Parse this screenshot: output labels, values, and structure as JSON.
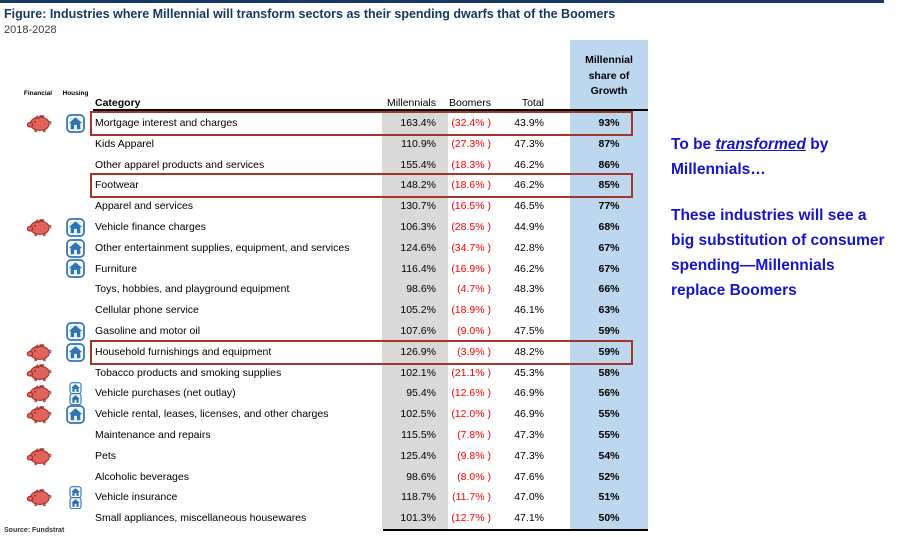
{
  "figure": {
    "title": "Figure: Industries where Millennial will transform sectors as their spending dwarfs that of the Boomers",
    "subtitle": "2018-2028",
    "source": "Source: Fundstrat"
  },
  "annotation": {
    "line1_prefix": "To be ",
    "line1_emphasis": "transformed",
    "line1_suffix": " by Millennials…",
    "line2": "These industries will see a big substitution of consumer spending—Millennials replace Boomers"
  },
  "icons": {
    "financial": "piggy-bank-icon",
    "housing": "house-icon"
  },
  "colors": {
    "title_navy": "#17375E",
    "annotation_blue": "#1414CC",
    "boomers_negative_red": "#FF0000",
    "highlight_border_red": "#A2362B",
    "millennials_column_bg": "#D9D9D9",
    "share_column_bg": "#BDD7EE",
    "pig_pink": "#E2625C",
    "house_blue": "#2E75B6"
  },
  "chart_data": {
    "type": "table",
    "title": "Industries where Millennial will transform sectors as their spending dwarfs that of the Boomers",
    "period": "2018-2028",
    "columns": [
      "Financial",
      "Housing",
      "Category",
      "Millennials",
      "Boomers",
      "Total",
      "Millennial share of Growth"
    ],
    "rows": [
      {
        "category": "Mortgage interest and charges",
        "millennials": "163.4%",
        "boomers": "(32.4% )",
        "total": "43.9%",
        "share": "93%",
        "financial": true,
        "housing": 1,
        "highlighted": true
      },
      {
        "category": "Kids Apparel",
        "millennials": "110.9%",
        "boomers": "(27.3% )",
        "total": "47.3%",
        "share": "87%",
        "financial": false,
        "housing": 0,
        "highlighted": false
      },
      {
        "category": "Other apparel products and services",
        "millennials": "155.4%",
        "boomers": "(18.3% )",
        "total": "46.2%",
        "share": "86%",
        "financial": false,
        "housing": 0,
        "highlighted": false
      },
      {
        "category": "Footwear",
        "millennials": "148.2%",
        "boomers": "(18.6% )",
        "total": "46.2%",
        "share": "85%",
        "financial": false,
        "housing": 0,
        "highlighted": true
      },
      {
        "category": "Apparel and services",
        "millennials": "130.7%",
        "boomers": "(16.5% )",
        "total": "46.5%",
        "share": "77%",
        "financial": false,
        "housing": 0,
        "highlighted": false
      },
      {
        "category": "Vehicle finance charges",
        "millennials": "106.3%",
        "boomers": "(28.5% )",
        "total": "44.9%",
        "share": "68%",
        "financial": true,
        "housing": 1,
        "highlighted": false
      },
      {
        "category": "Other entertainment supplies, equipment, and services",
        "millennials": "124.6%",
        "boomers": "(34.7% )",
        "total": "42.8%",
        "share": "67%",
        "financial": false,
        "housing": 1,
        "highlighted": false
      },
      {
        "category": "Furniture",
        "millennials": "116.4%",
        "boomers": "(16.9% )",
        "total": "46.2%",
        "share": "67%",
        "financial": false,
        "housing": 1,
        "highlighted": false
      },
      {
        "category": "Toys, hobbies, and playground equipment",
        "millennials": "98.6%",
        "boomers": "(4.7% )",
        "total": "48.3%",
        "share": "66%",
        "financial": false,
        "housing": 0,
        "highlighted": false
      },
      {
        "category": "Cellular phone service",
        "millennials": "105.2%",
        "boomers": "(18.9% )",
        "total": "46.1%",
        "share": "63%",
        "financial": false,
        "housing": 0,
        "highlighted": false
      },
      {
        "category": "Gasoline and motor oil",
        "millennials": "107.6%",
        "boomers": "(9.0% )",
        "total": "47.5%",
        "share": "59%",
        "financial": false,
        "housing": 1,
        "highlighted": false
      },
      {
        "category": "Household furnishings and equipment",
        "millennials": "126.9%",
        "boomers": "(3.9% )",
        "total": "48.2%",
        "share": "59%",
        "financial": true,
        "housing": 1,
        "highlighted": true
      },
      {
        "category": "Tobacco products and smoking supplies",
        "millennials": "102.1%",
        "boomers": "(21.1% )",
        "total": "45.3%",
        "share": "58%",
        "financial": true,
        "housing": 0,
        "highlighted": false
      },
      {
        "category": "Vehicle purchases (net outlay)",
        "millennials": "95.4%",
        "boomers": "(12.6% )",
        "total": "46.9%",
        "share": "56%",
        "financial": true,
        "housing": 2,
        "highlighted": false
      },
      {
        "category": "Vehicle rental, leases, licenses, and other charges",
        "millennials": "102.5%",
        "boomers": "(12.0% )",
        "total": "46.9%",
        "share": "55%",
        "financial": true,
        "housing": 1,
        "highlighted": false
      },
      {
        "category": "Maintenance and repairs",
        "millennials": "115.5%",
        "boomers": "(7.8% )",
        "total": "47.3%",
        "share": "55%",
        "financial": false,
        "housing": 0,
        "highlighted": false
      },
      {
        "category": "Pets",
        "millennials": "125.4%",
        "boomers": "(9.8% )",
        "total": "47.3%",
        "share": "54%",
        "financial": true,
        "housing": 0,
        "highlighted": false
      },
      {
        "category": "Alcoholic beverages",
        "millennials": "98.6%",
        "boomers": "(8.0% )",
        "total": "47.6%",
        "share": "52%",
        "financial": false,
        "housing": 0,
        "highlighted": false
      },
      {
        "category": "Vehicle insurance",
        "millennials": "118.7%",
        "boomers": "(11.7% )",
        "total": "47.0%",
        "share": "51%",
        "financial": true,
        "housing": 2,
        "highlighted": false
      },
      {
        "category": "Small appliances, miscellaneous housewares",
        "millennials": "101.3%",
        "boomers": "(12.7% )",
        "total": "47.1%",
        "share": "50%",
        "financial": false,
        "housing": 0,
        "highlighted": false
      }
    ]
  }
}
